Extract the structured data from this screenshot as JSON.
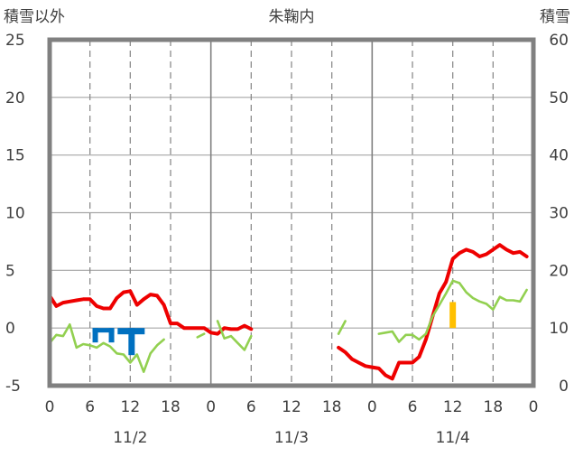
{
  "chart_data": {
    "type": "line",
    "title": "朱鞠内",
    "left_axis": {
      "label": "積雪以外",
      "range": [
        -5,
        25
      ],
      "ticks": [
        "-5",
        "0",
        "5",
        "10",
        "15",
        "20",
        "25"
      ]
    },
    "right_axis": {
      "label": "積雪",
      "range": [
        0,
        60
      ],
      "ticks": [
        "0",
        "10",
        "20",
        "30",
        "40",
        "50",
        "60"
      ]
    },
    "x_axis": {
      "range_hours": [
        0,
        72
      ],
      "tick_labels": [
        "0",
        "6",
        "12",
        "18",
        "0",
        "6",
        "12",
        "18",
        "0",
        "6",
        "12",
        "18",
        "0"
      ],
      "date_labels": [
        "11/2",
        "11/3",
        "11/4"
      ]
    },
    "grid": true,
    "series": [
      {
        "color": "#ee0000",
        "axis": "left",
        "values": [
          [
            0,
            2.8
          ],
          [
            1,
            1.9
          ],
          [
            2,
            2.2
          ],
          [
            3,
            2.3
          ],
          [
            4,
            2.4
          ],
          [
            5,
            2.5
          ],
          [
            6,
            2.5
          ],
          [
            7,
            1.9
          ],
          [
            8,
            1.7
          ],
          [
            9,
            1.7
          ],
          [
            10,
            2.6
          ],
          [
            11,
            3.1
          ],
          [
            12,
            3.2
          ],
          [
            13,
            2.0
          ],
          [
            14,
            2.5
          ],
          [
            15,
            2.9
          ],
          [
            16,
            2.8
          ],
          [
            17,
            2.0
          ],
          [
            18,
            0.4
          ],
          [
            19,
            0.4
          ],
          [
            20,
            0.0
          ],
          [
            21,
            0.0
          ],
          [
            22,
            0.0
          ],
          [
            23,
            0.0
          ],
          [
            24,
            -0.4
          ],
          [
            25,
            -0.5
          ],
          [
            26,
            0.0
          ],
          [
            27,
            -0.1
          ],
          [
            28,
            -0.1
          ],
          [
            29,
            0.2
          ],
          [
            30,
            -0.1
          ],
          null,
          null,
          null,
          null,
          null,
          null,
          null,
          null,
          null,
          null,
          null,
          [
            43,
            -1.7
          ],
          [
            44,
            -2.1
          ],
          [
            45,
            -2.7
          ],
          [
            46,
            -3.0
          ],
          [
            47,
            -3.3
          ],
          [
            48,
            -3.4
          ],
          [
            49,
            -3.5
          ],
          [
            50,
            -4.1
          ],
          [
            51,
            -4.4
          ],
          [
            52,
            -3.0
          ],
          [
            53,
            -3.0
          ],
          [
            54,
            -3.0
          ],
          [
            55,
            -2.5
          ],
          [
            56,
            -1.0
          ],
          [
            57,
            1.0
          ],
          [
            58,
            3.0
          ],
          [
            59,
            4.0
          ],
          [
            60,
            6.0
          ],
          [
            61,
            6.5
          ],
          [
            62,
            6.8
          ],
          [
            63,
            6.6
          ],
          [
            64,
            6.2
          ],
          [
            65,
            6.4
          ],
          [
            66,
            6.8
          ],
          [
            67,
            7.2
          ],
          [
            68,
            6.8
          ],
          [
            69,
            6.5
          ],
          [
            70,
            6.6
          ],
          [
            71,
            6.2
          ]
        ]
      },
      {
        "color": "#92d050",
        "axis": "left",
        "values": [
          [
            0,
            -1.3
          ],
          [
            1,
            -0.6
          ],
          [
            2,
            -0.7
          ],
          [
            3,
            0.3
          ],
          [
            4,
            -1.7
          ],
          [
            5,
            -1.4
          ],
          [
            6,
            -1.5
          ],
          [
            7,
            -1.7
          ],
          [
            8,
            -1.3
          ],
          [
            9,
            -1.6
          ],
          [
            10,
            -2.2
          ],
          [
            11,
            -2.3
          ],
          [
            12,
            -3.0
          ],
          [
            13,
            -2.3
          ],
          [
            14,
            -3.8
          ],
          [
            15,
            -2.2
          ],
          [
            16,
            -1.5
          ],
          [
            17,
            -1.0
          ],
          null,
          null,
          null,
          [
            22,
            -0.8
          ],
          [
            23,
            -0.5
          ],
          null,
          [
            25,
            0.6
          ],
          [
            26,
            -0.9
          ],
          [
            27,
            -0.7
          ],
          [
            28,
            -1.3
          ],
          [
            29,
            -1.9
          ],
          [
            30,
            -0.7
          ],
          null,
          null,
          null,
          null,
          null,
          null,
          null,
          null,
          null,
          null,
          null,
          [
            43,
            -0.5
          ],
          [
            44,
            0.6
          ],
          null,
          null,
          null,
          null,
          [
            49,
            -0.5
          ],
          [
            50,
            -0.4
          ],
          [
            51,
            -0.3
          ],
          [
            52,
            -1.2
          ],
          [
            53,
            -0.6
          ],
          [
            54,
            -0.6
          ],
          [
            55,
            -1.0
          ],
          [
            56,
            -0.5
          ],
          [
            57,
            1.0
          ],
          [
            58,
            2.0
          ],
          [
            59,
            3.0
          ],
          [
            60,
            4.1
          ],
          [
            61,
            3.9
          ],
          [
            62,
            3.1
          ],
          [
            63,
            2.6
          ],
          [
            64,
            2.3
          ],
          [
            65,
            2.1
          ],
          [
            66,
            1.6
          ],
          [
            67,
            2.7
          ],
          [
            68,
            2.4
          ],
          [
            69,
            2.4
          ],
          [
            70,
            2.3
          ],
          [
            71,
            3.3
          ]
        ]
      },
      {
        "color": "#7030a0",
        "axis": "left",
        "values": [
          [
            0,
            -5.0
          ],
          [
            30,
            -5.0
          ],
          [
            43,
            -5.0
          ],
          [
            71,
            -5.0
          ]
        ]
      }
    ],
    "blue_markers": [
      {
        "hour": 8,
        "shape": "bracket"
      },
      {
        "hour": 12,
        "shape": "tee"
      }
    ],
    "snow_bars": [
      {
        "hour": 60,
        "value": 14.5,
        "color": "#ffc000"
      }
    ]
  }
}
